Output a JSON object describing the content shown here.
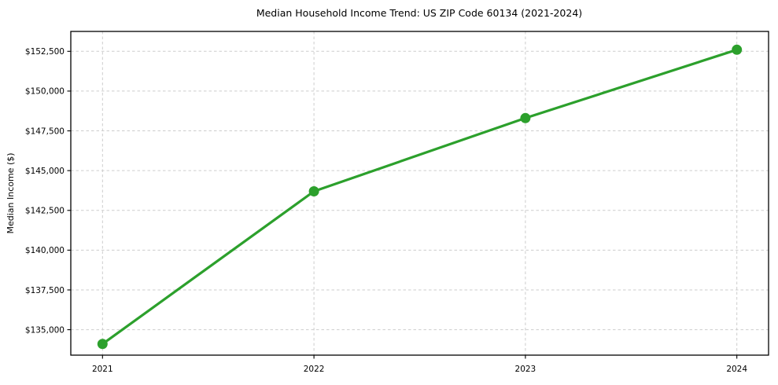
{
  "figure": {
    "background": "#ffffff"
  },
  "chart_data": {
    "type": "line",
    "title": "Median Household Income Trend: US ZIP Code 60134 (2021-2024)",
    "xlabel": "",
    "ylabel": "Median Income ($)",
    "x": [
      2021,
      2022,
      2023,
      2024
    ],
    "series": [
      {
        "values": [
          134100,
          143700,
          148300,
          152600
        ],
        "color": "#2ca02c",
        "marker": "circle",
        "marker_size": 6.5,
        "line_width": 3.2
      }
    ],
    "xticks": {
      "values": [
        2021,
        2022,
        2023,
        2024
      ],
      "labels": [
        "2021",
        "2022",
        "2023",
        "2024"
      ]
    },
    "yticks": {
      "values": [
        135000,
        137500,
        140000,
        142500,
        145000,
        147500,
        150000,
        152500
      ],
      "labels": [
        "$135,000",
        "$137,500",
        "$140,000",
        "$142,500",
        "$145,000",
        "$147,500",
        "$150,000",
        "$152,500"
      ]
    },
    "xlim": [
      2020.85,
      2024.15
    ],
    "ylim": [
      133400,
      153750
    ],
    "grid": {
      "show": true,
      "style": "dashed",
      "color": "#cdcdcd"
    },
    "legend": {
      "show": false
    },
    "colors": {
      "line": "#2ca02c",
      "spine": "#000000",
      "text": "#000000",
      "background": "#ffffff"
    }
  }
}
